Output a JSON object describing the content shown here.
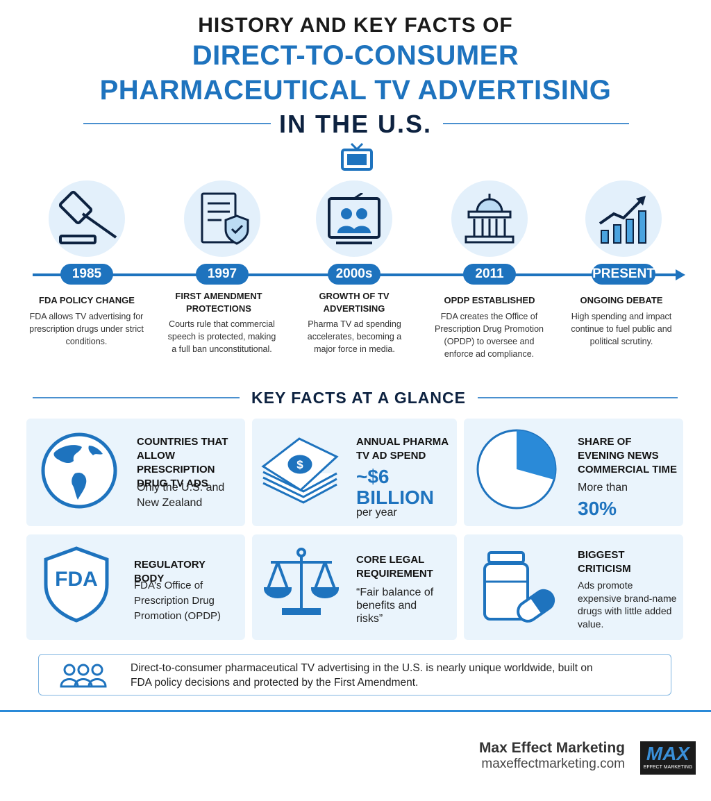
{
  "header": {
    "line1": "HISTORY AND KEY FACTS OF",
    "line2": "DIRECT-TO-CONSUMER",
    "line3": "PHARMACEUTICAL TV ADVERTISING",
    "line4": "IN THE U.S."
  },
  "timeline": [
    {
      "year": "1985",
      "title": "FDA POLICY CHANGE",
      "text": "FDA allows TV advertising for prescription drugs under strict conditions."
    },
    {
      "year": "1997",
      "title": "FIRST AMENDMENT PROTECTIONS",
      "text": "Courts rule that commercial speech is protected, making a full ban unconstitutional."
    },
    {
      "year": "2000s",
      "title": "GROWTH OF TV ADVERTISING",
      "text": "Pharma TV ad spending accelerates, becoming a major force in media."
    },
    {
      "year": "2011",
      "title": "OPDP ESTABLISHED",
      "text": "FDA creates the Office of Prescription Drug Promotion (OPDP) to oversee and enforce ad compliance."
    },
    {
      "year": "PRESENT",
      "title": "ONGOING DEBATE",
      "text": "High spending and impact continue to fuel public and political scrutiny."
    }
  ],
  "facts_heading": "KEY FACTS AT A GLANCE",
  "facts": [
    {
      "title": "COUNTRIES THAT ALLOW PRESCRIPTION DRUG TV ADS",
      "text": "Only the U.S. and New Zealand"
    },
    {
      "title": "ANNUAL PHARMA TV AD SPEND",
      "highlight": "~$6 BILLION",
      "text": "per year"
    },
    {
      "title": "SHARE OF EVENING NEWS COMMERCIAL TIME",
      "text": "More than",
      "highlight": "30%"
    },
    {
      "title": "REGULATORY BODY",
      "icon_text": "FDA",
      "text": "FDA’s Office of Prescription Drug Promotion (OPDP)"
    },
    {
      "title": "CORE LEGAL REQUIREMENT",
      "text": "“Fair balance of benefits and risks”"
    },
    {
      "title": "BIGGEST CRITICISM",
      "text": "Ads promote expensive brand-name drugs with little added value."
    }
  ],
  "summary": "Direct-to-consumer pharmaceutical TV advertising in the U.S. is nearly unique worldwide, built on FDA policy decisions and protected by the First Amendment.",
  "footer": {
    "company": "Max Effect Marketing",
    "url": "maxeffectmarketing.com",
    "logo": "MAX",
    "logo_sub": "EFFECT MARKETING"
  }
}
